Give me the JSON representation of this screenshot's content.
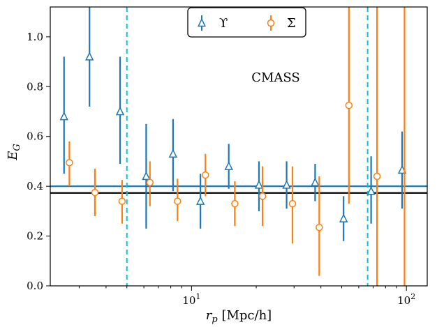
{
  "chart_data": {
    "type": "scatter",
    "xlabel_main": "r",
    "xlabel_sub": "p",
    "xlabel_unit": " [Mpc/h]",
    "ylabel_main": "E",
    "ylabel_sub": "G",
    "annotation": "CMASS",
    "xscale": "log",
    "xlim": [
      2.2,
      125
    ],
    "ylim": [
      0.0,
      1.12
    ],
    "yticks": [
      {
        "value": 0.0,
        "label": "0.0"
      },
      {
        "value": 0.2,
        "label": "0.2"
      },
      {
        "value": 0.4,
        "label": "0.4"
      },
      {
        "value": 0.6,
        "label": "0.6"
      },
      {
        "value": 0.8,
        "label": "0.8"
      },
      {
        "value": 1.0,
        "label": "1.0"
      }
    ],
    "xticks_major": [
      {
        "value": 10,
        "base": "10",
        "exp": "1"
      },
      {
        "value": 100,
        "base": "10",
        "exp": "2"
      }
    ],
    "xticks_minor": [
      3,
      4,
      5,
      6,
      7,
      8,
      9,
      20,
      30,
      40,
      50,
      60,
      70,
      80,
      90
    ],
    "legend": {
      "placement": "top-center",
      "entries": [
        {
          "label": "ϒ",
          "marker": "triangle",
          "color": "#1f77b4"
        },
        {
          "label": "Σ",
          "marker": "circle",
          "color": "#ff7f0e"
        }
      ]
    },
    "series": [
      {
        "name": "ϒ",
        "color": "#1f77b4",
        "marker": "triangle",
        "x": [
          2.55,
          3.35,
          4.65,
          6.15,
          8.2,
          11.0,
          14.9,
          20.6,
          27.7,
          37.6,
          51.0,
          68.5,
          95.5
        ],
        "y": [
          0.68,
          0.92,
          0.7,
          0.44,
          0.53,
          0.34,
          0.48,
          0.405,
          0.405,
          0.415,
          0.27,
          0.38,
          0.465
        ],
        "err_low": [
          0.45,
          0.72,
          0.49,
          0.23,
          0.38,
          0.23,
          0.39,
          0.3,
          0.31,
          0.34,
          0.18,
          0.25,
          0.31
        ],
        "err_high": [
          0.92,
          1.12,
          0.92,
          0.65,
          0.67,
          0.45,
          0.57,
          0.5,
          0.5,
          0.49,
          0.36,
          0.52,
          0.62
        ]
      },
      {
        "name": "Σ",
        "color": "#ff7f0e",
        "marker": "circle",
        "x": [
          2.7,
          3.55,
          4.75,
          6.4,
          8.6,
          11.6,
          15.9,
          21.4,
          29.5,
          39.3,
          54.0,
          73.0,
          98.0
        ],
        "y": [
          0.495,
          0.375,
          0.34,
          0.415,
          0.34,
          0.445,
          0.33,
          0.36,
          0.33,
          0.235,
          0.725,
          0.44,
          null
        ],
        "err_low": [
          0.4,
          0.28,
          0.25,
          0.32,
          0.26,
          0.36,
          0.24,
          0.24,
          0.17,
          0.04,
          0.33,
          0.0,
          0.0
        ],
        "err_high": [
          0.58,
          0.47,
          0.425,
          0.5,
          0.43,
          0.53,
          0.42,
          0.48,
          0.48,
          0.44,
          1.12,
          1.12,
          1.12
        ]
      }
    ],
    "hlines": [
      {
        "y": 0.4,
        "color": "#1f77b4"
      },
      {
        "y": 0.373,
        "color": "#000000"
      }
    ],
    "vlines": [
      {
        "x": 5.0,
        "color": "#17becf",
        "style": "dashed"
      },
      {
        "x": 66.0,
        "color": "#17becf",
        "style": "dashed"
      }
    ]
  }
}
